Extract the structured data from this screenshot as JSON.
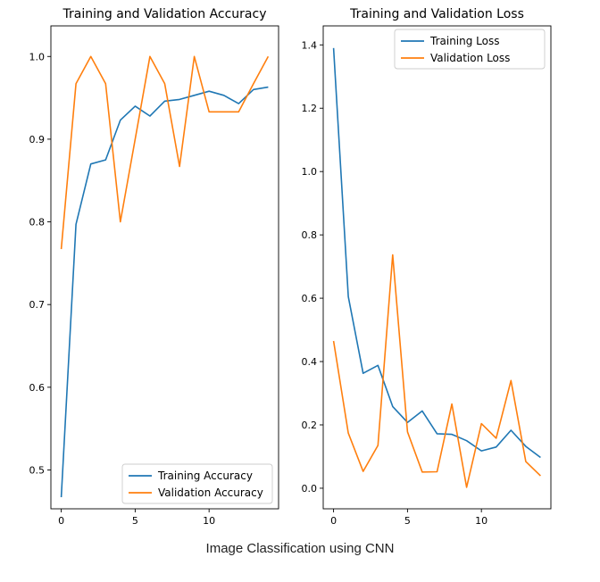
{
  "caption": "Image Classification using CNN",
  "colors": {
    "training": "#1f77b4",
    "validation": "#ff7f0e",
    "axis": "#000000"
  },
  "chart_data": [
    {
      "type": "line",
      "title": "Training and Validation Accuracy",
      "xlabel": "",
      "ylabel": "",
      "xlim": [
        -0.7,
        14.7
      ],
      "ylim": [
        0.453,
        1.037
      ],
      "xticks": [
        0,
        5,
        10
      ],
      "yticks": [
        0.5,
        0.6,
        0.7,
        0.8,
        0.9,
        1.0
      ],
      "ytick_labels": [
        "0.5",
        "0.6",
        "0.7",
        "0.8",
        "0.9",
        "1.0"
      ],
      "grid": false,
      "legend_position": "bottom-right",
      "x": [
        0,
        1,
        2,
        3,
        4,
        5,
        6,
        7,
        8,
        9,
        10,
        11,
        12,
        13,
        14
      ],
      "series": [
        {
          "name": "Training Accuracy",
          "color": "#1f77b4",
          "values": [
            0.467,
            0.797,
            0.87,
            0.875,
            0.923,
            0.94,
            0.928,
            0.946,
            0.948,
            0.953,
            0.958,
            0.953,
            0.943,
            0.96,
            0.963
          ]
        },
        {
          "name": "Validation Accuracy",
          "color": "#ff7f0e",
          "values": [
            0.767,
            0.967,
            1.0,
            0.967,
            0.8,
            0.9,
            1.0,
            0.967,
            0.867,
            1.0,
            0.933,
            0.933,
            0.933,
            0.967,
            1.0
          ]
        }
      ]
    },
    {
      "type": "line",
      "title": "Training and Validation Loss",
      "xlabel": "",
      "ylabel": "",
      "xlim": [
        -0.7,
        14.7
      ],
      "ylim": [
        -0.065,
        1.46
      ],
      "xticks": [
        0,
        5,
        10
      ],
      "yticks": [
        0.0,
        0.2,
        0.4,
        0.6,
        0.8,
        1.0,
        1.2,
        1.4
      ],
      "ytick_labels": [
        "0.0",
        "0.2",
        "0.4",
        "0.6",
        "0.8",
        "1.0",
        "1.2",
        "1.4"
      ],
      "grid": false,
      "legend_position": "top-right",
      "x": [
        0,
        1,
        2,
        3,
        4,
        5,
        6,
        7,
        8,
        9,
        10,
        11,
        12,
        13,
        14
      ],
      "series": [
        {
          "name": "Training Loss",
          "color": "#1f77b4",
          "values": [
            1.39,
            0.605,
            0.363,
            0.388,
            0.258,
            0.208,
            0.244,
            0.172,
            0.17,
            0.15,
            0.118,
            0.13,
            0.183,
            0.132,
            0.097
          ]
        },
        {
          "name": "Validation Loss",
          "color": "#ff7f0e",
          "values": [
            0.465,
            0.174,
            0.053,
            0.135,
            0.737,
            0.178,
            0.051,
            0.052,
            0.266,
            0.003,
            0.204,
            0.158,
            0.34,
            0.084,
            0.039
          ]
        }
      ]
    }
  ]
}
